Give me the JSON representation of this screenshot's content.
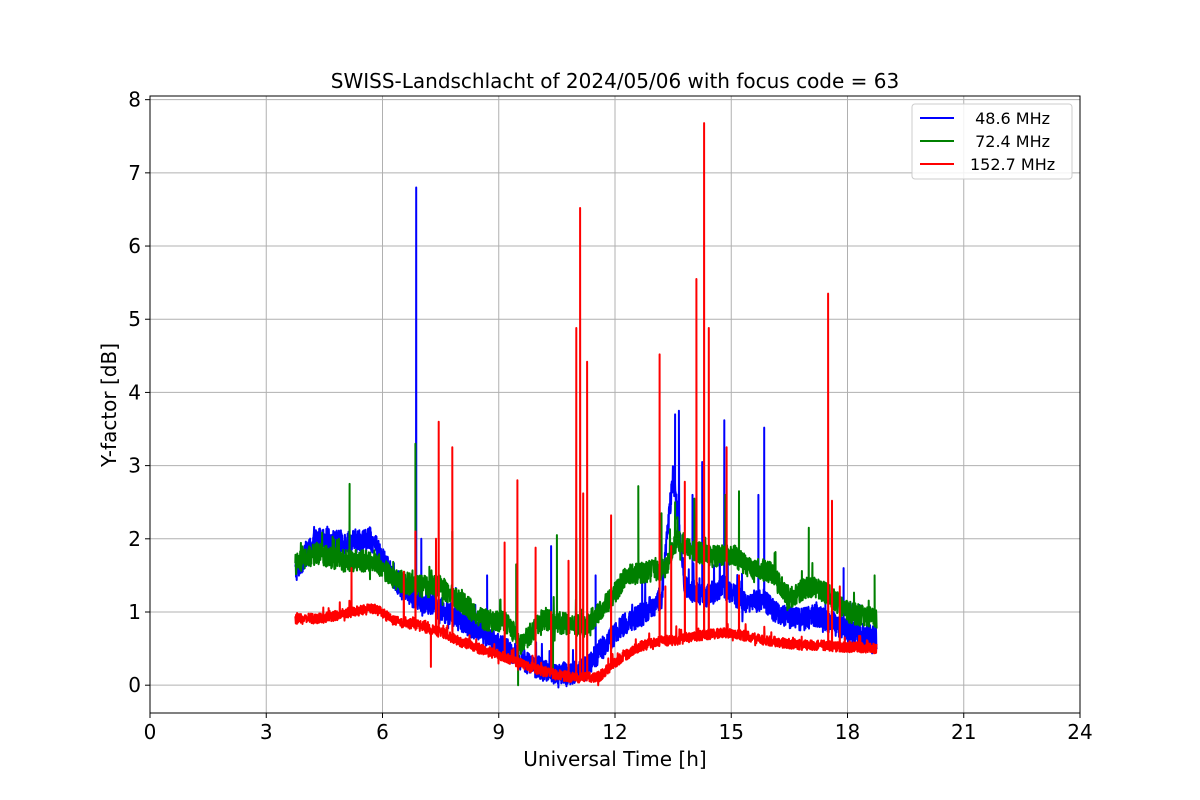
{
  "chart_data": {
    "type": "line",
    "title": "SWISS-Landschlacht of 2024/05/06 with focus code = 63",
    "xlabel": "Universal Time [h]",
    "ylabel": "Y-factor [dB]",
    "xlim": [
      0,
      24
    ],
    "ylim": [
      -0.38,
      8.05
    ],
    "xticks": [
      0,
      3,
      6,
      9,
      12,
      15,
      18,
      21,
      24
    ],
    "yticks": [
      0,
      1,
      2,
      3,
      4,
      5,
      6,
      7,
      8
    ],
    "grid": true,
    "legend_position": "top-right",
    "series": [
      {
        "name": " 48.6 MHz",
        "color": "#0000ff",
        "x_range": [
          3.75,
          18.75
        ],
        "anchors": [
          [
            3.75,
            1.55
          ],
          [
            4.3,
            2.0
          ],
          [
            5.0,
            1.95
          ],
          [
            5.7,
            2.0
          ],
          [
            6.3,
            1.45
          ],
          [
            6.8,
            1.2
          ],
          [
            7.3,
            1.1
          ],
          [
            7.8,
            0.95
          ],
          [
            8.5,
            0.75
          ],
          [
            9.0,
            0.55
          ],
          [
            9.6,
            0.35
          ],
          [
            10.2,
            0.2
          ],
          [
            10.8,
            0.15
          ],
          [
            11.3,
            0.25
          ],
          [
            11.8,
            0.6
          ],
          [
            12.3,
            0.85
          ],
          [
            12.8,
            1.0
          ],
          [
            13.2,
            1.2
          ],
          [
            13.5,
            2.9
          ],
          [
            13.8,
            1.35
          ],
          [
            14.3,
            1.2
          ],
          [
            14.8,
            1.35
          ],
          [
            15.3,
            1.15
          ],
          [
            15.8,
            1.15
          ],
          [
            16.3,
            0.95
          ],
          [
            16.8,
            0.9
          ],
          [
            17.2,
            0.95
          ],
          [
            17.6,
            0.85
          ],
          [
            18.2,
            0.7
          ],
          [
            18.75,
            0.65
          ]
        ],
        "noise": 0.16,
        "spikes": [
          [
            6.87,
            6.8
          ],
          [
            7.0,
            2.0
          ],
          [
            13.55,
            3.7
          ],
          [
            13.65,
            3.75
          ],
          [
            14.0,
            2.6
          ],
          [
            14.25,
            3.05
          ],
          [
            14.82,
            3.62
          ],
          [
            15.85,
            3.52
          ],
          [
            15.7,
            2.6
          ],
          [
            8.7,
            1.5
          ],
          [
            10.35,
            1.9
          ],
          [
            11.5,
            1.5
          ],
          [
            12.7,
            1.5
          ],
          [
            17.9,
            1.6
          ]
        ]
      },
      {
        "name": " 72.4 MHz",
        "color": "#008000",
        "x_range": [
          3.75,
          18.75
        ],
        "anchors": [
          [
            3.75,
            1.65
          ],
          [
            4.3,
            1.8
          ],
          [
            5.0,
            1.7
          ],
          [
            5.8,
            1.7
          ],
          [
            6.3,
            1.45
          ],
          [
            6.9,
            1.35
          ],
          [
            7.5,
            1.35
          ],
          [
            8.0,
            1.15
          ],
          [
            8.6,
            0.9
          ],
          [
            9.2,
            0.85
          ],
          [
            9.6,
            0.55
          ],
          [
            10.1,
            0.9
          ],
          [
            10.6,
            0.85
          ],
          [
            11.2,
            0.8
          ],
          [
            11.7,
            1.05
          ],
          [
            12.3,
            1.5
          ],
          [
            12.8,
            1.55
          ],
          [
            13.3,
            1.6
          ],
          [
            13.6,
            2.0
          ],
          [
            14.0,
            1.85
          ],
          [
            14.5,
            1.75
          ],
          [
            15.0,
            1.8
          ],
          [
            15.5,
            1.6
          ],
          [
            16.0,
            1.55
          ],
          [
            16.5,
            1.2
          ],
          [
            17.0,
            1.35
          ],
          [
            17.5,
            1.25
          ],
          [
            18.0,
            1.0
          ],
          [
            18.75,
            0.9
          ]
        ],
        "noise": 0.15,
        "spikes": [
          [
            5.15,
            2.75
          ],
          [
            6.85,
            3.3
          ],
          [
            7.8,
            2.1
          ],
          [
            9.45,
            1.65
          ],
          [
            10.5,
            2.05
          ],
          [
            11.0,
            2.0
          ],
          [
            12.6,
            2.72
          ],
          [
            13.2,
            2.35
          ],
          [
            13.55,
            2.5
          ],
          [
            14.05,
            2.55
          ],
          [
            14.85,
            2.6
          ],
          [
            15.2,
            2.65
          ],
          [
            17.0,
            2.15
          ],
          [
            18.7,
            1.5
          ],
          [
            9.5,
            0.0
          ],
          [
            10.4,
            0.1
          ]
        ]
      },
      {
        "name": "152.7 MHz",
        "color": "#ff0000",
        "x_range": [
          3.75,
          18.75
        ],
        "anchors": [
          [
            3.75,
            0.9
          ],
          [
            4.5,
            0.92
          ],
          [
            5.2,
            1.0
          ],
          [
            5.8,
            1.05
          ],
          [
            6.3,
            0.88
          ],
          [
            6.9,
            0.82
          ],
          [
            7.5,
            0.72
          ],
          [
            8.0,
            0.6
          ],
          [
            8.6,
            0.48
          ],
          [
            9.2,
            0.38
          ],
          [
            9.8,
            0.25
          ],
          [
            10.4,
            0.15
          ],
          [
            11.0,
            0.1
          ],
          [
            11.6,
            0.12
          ],
          [
            12.1,
            0.35
          ],
          [
            12.6,
            0.52
          ],
          [
            13.1,
            0.6
          ],
          [
            13.6,
            0.62
          ],
          [
            14.2,
            0.68
          ],
          [
            14.8,
            0.72
          ],
          [
            15.3,
            0.68
          ],
          [
            15.8,
            0.62
          ],
          [
            16.3,
            0.58
          ],
          [
            16.8,
            0.55
          ],
          [
            17.3,
            0.55
          ],
          [
            17.8,
            0.52
          ],
          [
            18.3,
            0.52
          ],
          [
            18.75,
            0.5
          ]
        ],
        "noise": 0.07,
        "spikes": [
          [
            5.2,
            1.6
          ],
          [
            6.55,
            1.55
          ],
          [
            6.85,
            2.1
          ],
          [
            7.25,
            0.25
          ],
          [
            7.38,
            2.0
          ],
          [
            7.45,
            3.6
          ],
          [
            7.8,
            3.25
          ],
          [
            9.15,
            1.95
          ],
          [
            9.48,
            2.8
          ],
          [
            9.95,
            1.88
          ],
          [
            10.35,
            1.0
          ],
          [
            10.8,
            1.7
          ],
          [
            11.0,
            4.88
          ],
          [
            11.1,
            6.52
          ],
          [
            11.18,
            2.62
          ],
          [
            11.28,
            4.42
          ],
          [
            11.9,
            2.32
          ],
          [
            13.15,
            4.52
          ],
          [
            13.3,
            1.35
          ],
          [
            13.45,
            1.9
          ],
          [
            13.8,
            2.78
          ],
          [
            14.1,
            5.55
          ],
          [
            14.3,
            7.68
          ],
          [
            14.42,
            4.88
          ],
          [
            14.88,
            3.25
          ],
          [
            15.2,
            1.5
          ],
          [
            17.5,
            5.35
          ],
          [
            17.6,
            2.52
          ],
          [
            17.8,
            1.35
          ],
          [
            18.05,
            0.6
          ]
        ]
      }
    ]
  }
}
